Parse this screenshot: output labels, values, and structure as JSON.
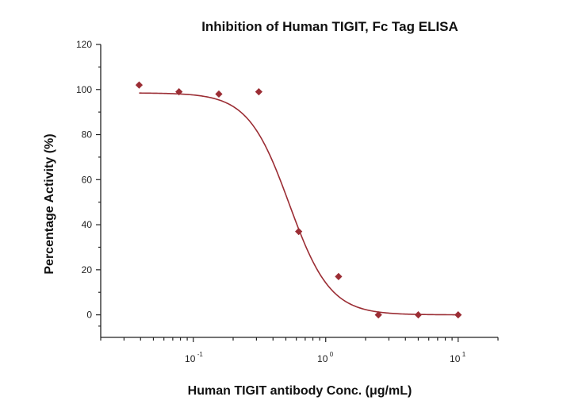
{
  "chart_data": {
    "type": "scatter",
    "title": "Inhibition of Human TIGIT, Fc Tag ELISA",
    "xlabel": "Human TIGIT antibody Conc. (μg/mL)",
    "ylabel": "Percentage Activity (%)",
    "x_scale": "log",
    "xlim": [
      0.02,
      20
    ],
    "ylim": [
      -10,
      120
    ],
    "y_ticks": [
      0,
      20,
      40,
      60,
      80,
      100,
      120
    ],
    "x_ticks": [
      {
        "value": 0.1,
        "base": "10",
        "exp": "-1"
      },
      {
        "value": 1,
        "base": "10",
        "exp": "0"
      },
      {
        "value": 10,
        "base": "10",
        "exp": "1"
      }
    ],
    "grid": false,
    "legend": "none",
    "series": [
      {
        "x": [
          0.039,
          0.078,
          0.156,
          0.3125,
          0.625,
          1.25,
          2.5,
          5,
          10
        ],
        "y": [
          102,
          99,
          98,
          99,
          37,
          17,
          0,
          0,
          0
        ],
        "fit": {
          "model": "4PL",
          "top": 98.5,
          "bottom": 0,
          "ec50": 0.53,
          "hill": 2.8
        },
        "color": "#9b2d34"
      }
    ]
  }
}
